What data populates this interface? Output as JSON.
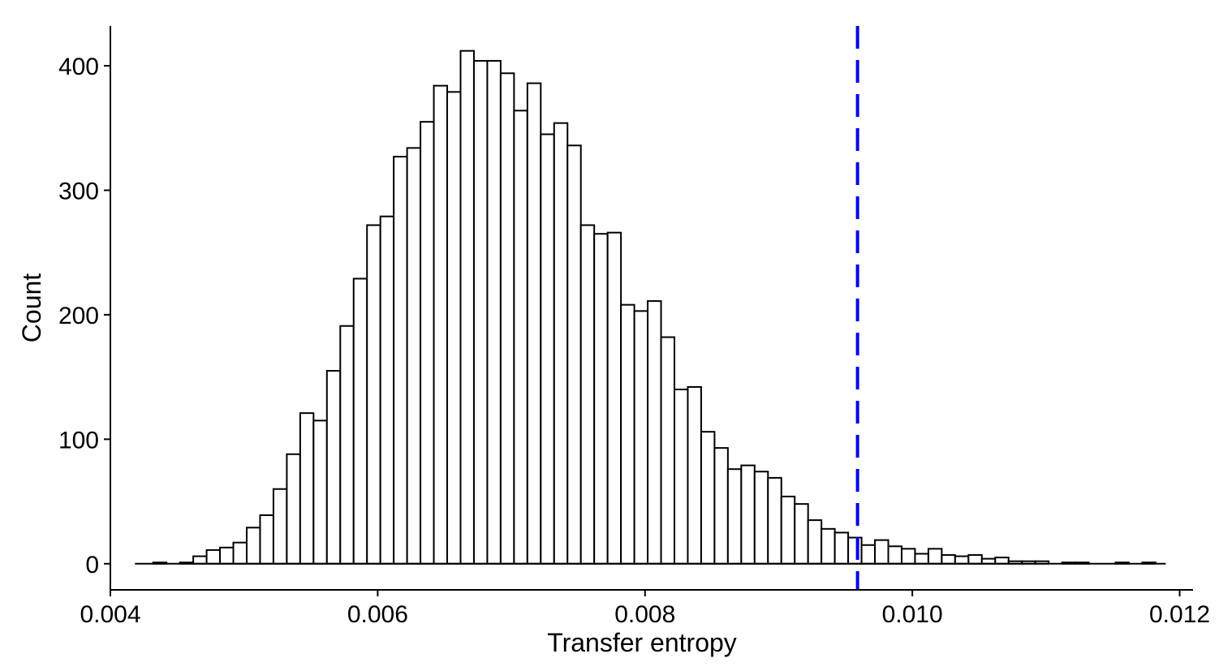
{
  "chart_data": {
    "type": "bar",
    "title": "",
    "xlabel": "Transfer entropy",
    "ylabel": "Count",
    "xlim": [
      0.004,
      0.0121
    ],
    "ylim": [
      -21,
      432
    ],
    "x_ticks": [
      "0.004",
      "0.006",
      "0.008",
      "0.010",
      "0.012"
    ],
    "x_tick_values": [
      0.004,
      0.006,
      0.008,
      0.01,
      0.012
    ],
    "y_ticks": [
      "0",
      "100",
      "200",
      "300",
      "400"
    ],
    "y_tick_values": [
      0,
      100,
      200,
      300,
      400
    ],
    "bin_start": 0.00422,
    "bin_width": 0.0001,
    "values": [
      0,
      1,
      0,
      1,
      6,
      11,
      13,
      17,
      29,
      39,
      60,
      88,
      121,
      115,
      155,
      191,
      229,
      272,
      279,
      327,
      334,
      355,
      384,
      379,
      412,
      404,
      404,
      394,
      364,
      386,
      345,
      354,
      336,
      272,
      265,
      266,
      208,
      203,
      211,
      182,
      140,
      142,
      106,
      93,
      76,
      79,
      74,
      69,
      54,
      48,
      35,
      28,
      25,
      21,
      15,
      19,
      14,
      12,
      8,
      12,
      7,
      6,
      7,
      4,
      5,
      2,
      2,
      2,
      0,
      1,
      1,
      0,
      0,
      1,
      0,
      1,
      0
    ],
    "threshold": 0.00959,
    "threshold_color": "#0000ee",
    "bar_fill": "#ffffff",
    "bar_stroke": "#000000",
    "grid": false,
    "legend": "none"
  }
}
